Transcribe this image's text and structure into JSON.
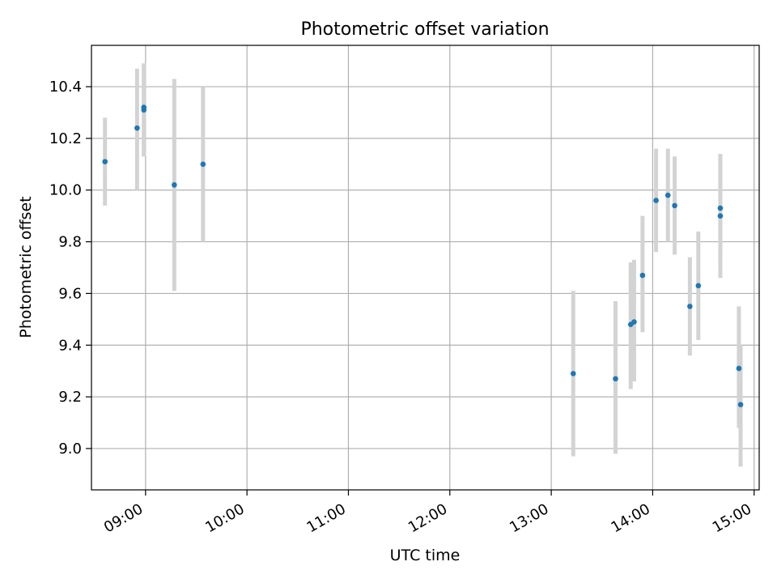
{
  "chart_data": {
    "type": "scatter",
    "title": "Photometric offset variation",
    "xlabel": "UTC time",
    "ylabel": "Photometric offset",
    "x_axis_type": "time",
    "xlim": [
      "08:28",
      "15:03"
    ],
    "ylim": [
      8.84,
      10.56
    ],
    "x_ticks": [
      "09:00",
      "10:00",
      "11:00",
      "12:00",
      "13:00",
      "14:00",
      "15:00"
    ],
    "y_ticks": [
      9.0,
      9.2,
      9.4,
      9.6,
      9.8,
      10.0,
      10.2,
      10.4
    ],
    "y_tick_labels": [
      "9.0",
      "9.2",
      "9.4",
      "9.6",
      "9.8",
      "10.0",
      "10.2",
      "10.4"
    ],
    "grid": true,
    "marker_color": "#1f77b4",
    "errorbar_color": "#d3d3d3",
    "points": [
      {
        "time": "08:36",
        "offset": 10.11,
        "low": 9.94,
        "high": 10.28
      },
      {
        "time": "08:55",
        "offset": 10.24,
        "low": 10.0,
        "high": 10.47
      },
      {
        "time": "08:59",
        "offset": 10.31,
        "low": 10.13,
        "high": 10.49
      },
      {
        "time": "08:59",
        "offset": 10.32,
        "low": 10.13,
        "high": 10.49
      },
      {
        "time": "09:17",
        "offset": 10.02,
        "low": 9.61,
        "high": 10.43
      },
      {
        "time": "09:34",
        "offset": 10.1,
        "low": 9.8,
        "high": 10.4
      },
      {
        "time": "13:13",
        "offset": 9.29,
        "low": 8.97,
        "high": 9.61
      },
      {
        "time": "13:38",
        "offset": 9.27,
        "low": 8.98,
        "high": 9.57
      },
      {
        "time": "13:47",
        "offset": 9.48,
        "low": 9.23,
        "high": 9.72
      },
      {
        "time": "13:49",
        "offset": 9.49,
        "low": 9.26,
        "high": 9.73
      },
      {
        "time": "13:54",
        "offset": 9.67,
        "low": 9.45,
        "high": 9.9
      },
      {
        "time": "14:02",
        "offset": 9.96,
        "low": 9.76,
        "high": 10.16
      },
      {
        "time": "14:09",
        "offset": 9.98,
        "low": 9.8,
        "high": 10.16
      },
      {
        "time": "14:13",
        "offset": 9.94,
        "low": 9.75,
        "high": 10.13
      },
      {
        "time": "14:22",
        "offset": 9.55,
        "low": 9.36,
        "high": 9.74
      },
      {
        "time": "14:27",
        "offset": 9.63,
        "low": 9.42,
        "high": 9.84
      },
      {
        "time": "14:40",
        "offset": 9.9,
        "low": 9.66,
        "high": 10.14
      },
      {
        "time": "14:40",
        "offset": 9.93,
        "low": 9.73,
        "high": 10.14
      },
      {
        "time": "14:51",
        "offset": 9.31,
        "low": 9.08,
        "high": 9.55
      },
      {
        "time": "14:52",
        "offset": 9.17,
        "low": 8.93,
        "high": 9.4
      }
    ]
  }
}
